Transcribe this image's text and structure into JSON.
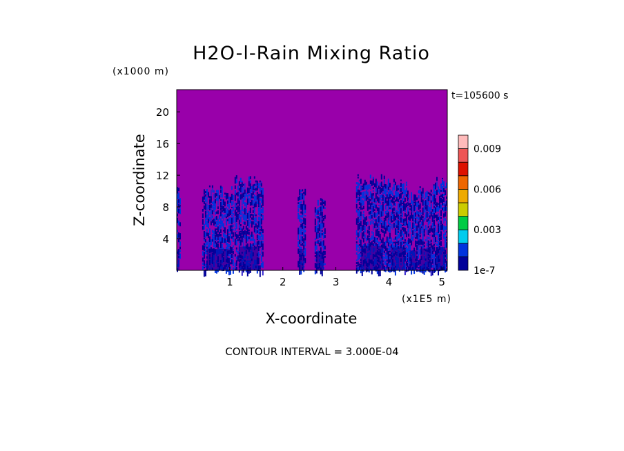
{
  "chart_data": {
    "type": "heatmap",
    "title": "H2O-l-Rain Mixing Ratio",
    "time_label": "t=105600 s",
    "xlabel": "X-coordinate",
    "ylabel": "Z-coordinate",
    "x_unit": "(x1E5 m)",
    "y_unit": "(x1000 m)",
    "xlim": [
      0,
      5.1
    ],
    "ylim": [
      0,
      22.8
    ],
    "x_ticks": [
      "1",
      "2",
      "3",
      "4",
      "5"
    ],
    "y_ticks": [
      "4",
      "8",
      "12",
      "16",
      "20"
    ],
    "x_tick_values": [
      1,
      2,
      3,
      4,
      5
    ],
    "y_tick_values": [
      4,
      8,
      12,
      16,
      20
    ],
    "footer": "CONTOUR INTERVAL = 3.000E-04",
    "background_value_color": "#9900aa",
    "colorbar": {
      "colors": [
        "#000099",
        "#0033dd",
        "#00ccee",
        "#00cc44",
        "#cccc00",
        "#eeaa00",
        "#ee6600",
        "#dd1100",
        "#ee5555",
        "#ffbbbb"
      ],
      "labels": [
        "1e-7",
        "0.003",
        "0.006",
        "0.009"
      ]
    },
    "rain_regions": [
      {
        "x_start": 0.0,
        "x_end": 0.06,
        "z_top": 10.5
      },
      {
        "x_start": 0.48,
        "x_end": 1.06,
        "z_top": 10.8
      },
      {
        "x_start": 1.09,
        "x_end": 1.62,
        "z_top": 12.0
      },
      {
        "x_start": 2.28,
        "x_end": 2.42,
        "z_top": 10.8
      },
      {
        "x_start": 2.6,
        "x_end": 2.8,
        "z_top": 9.5
      },
      {
        "x_start": 3.38,
        "x_end": 3.98,
        "z_top": 12.2
      },
      {
        "x_start": 3.98,
        "x_end": 4.36,
        "z_top": 11.6
      },
      {
        "x_start": 4.36,
        "x_end": 4.55,
        "z_top": 10.0
      },
      {
        "x_start": 4.55,
        "x_end": 4.84,
        "z_top": 11.0
      },
      {
        "x_start": 4.84,
        "x_end": 5.1,
        "z_top": 11.8
      }
    ]
  }
}
